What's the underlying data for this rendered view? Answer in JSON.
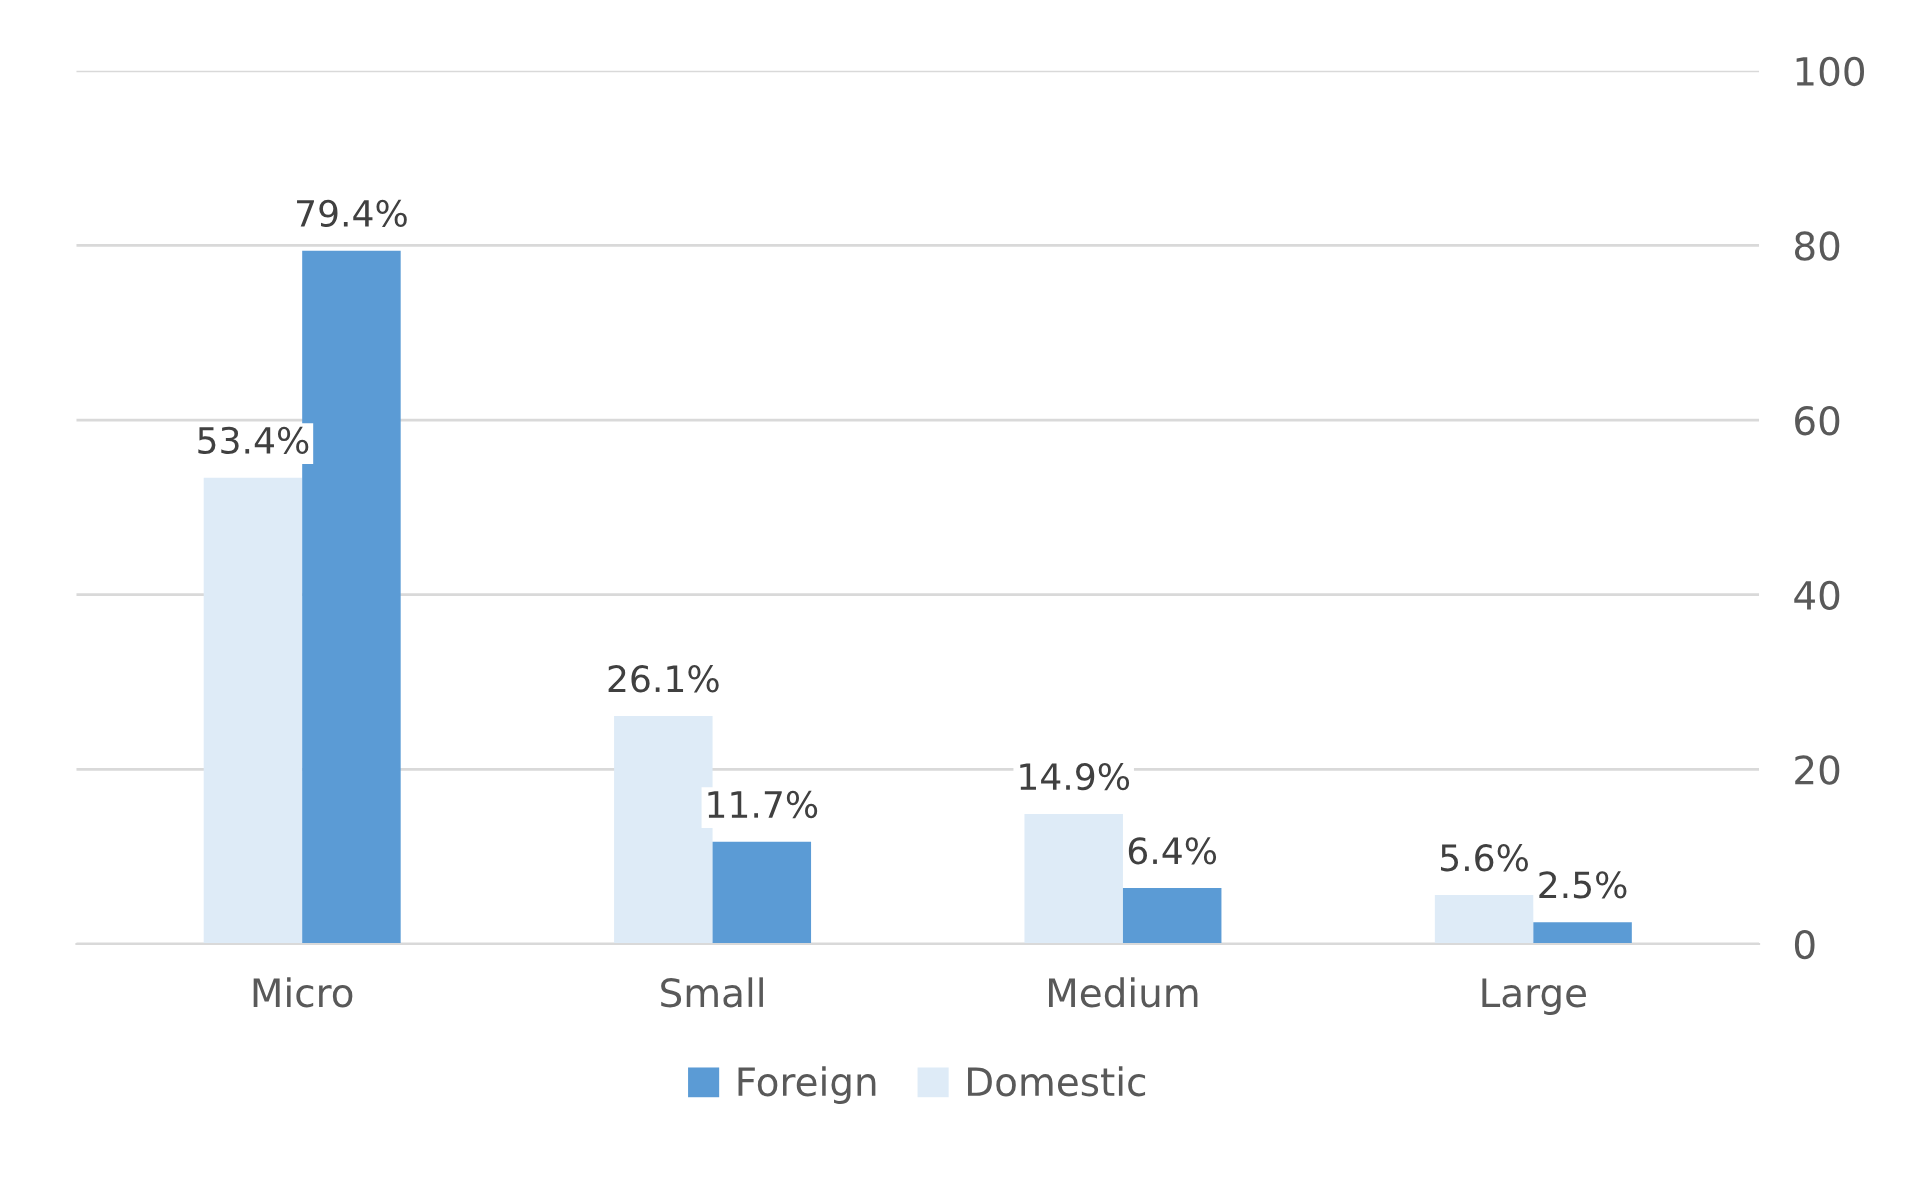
{
  "chart_data": {
    "type": "bar",
    "categories": [
      "Micro",
      "Small",
      "Medium",
      "Large"
    ],
    "series": [
      {
        "name": "Domestic",
        "color": "#deebf7",
        "values": [
          53.4,
          26.1,
          14.9,
          5.6
        ],
        "value_labels": [
          "53.4%",
          "26.1%",
          "14.9%",
          "5.6%"
        ]
      },
      {
        "name": "Foreign",
        "color": "#5b9bd5",
        "values": [
          79.4,
          11.7,
          6.4,
          2.5
        ],
        "value_labels": [
          "79.4%",
          "11.7%",
          "6.4%",
          "2.5%"
        ]
      }
    ],
    "ylim": [
      0,
      100
    ],
    "yticks": [
      0,
      20,
      40,
      60,
      80,
      100
    ],
    "grid": "y",
    "legend": "bottom"
  }
}
